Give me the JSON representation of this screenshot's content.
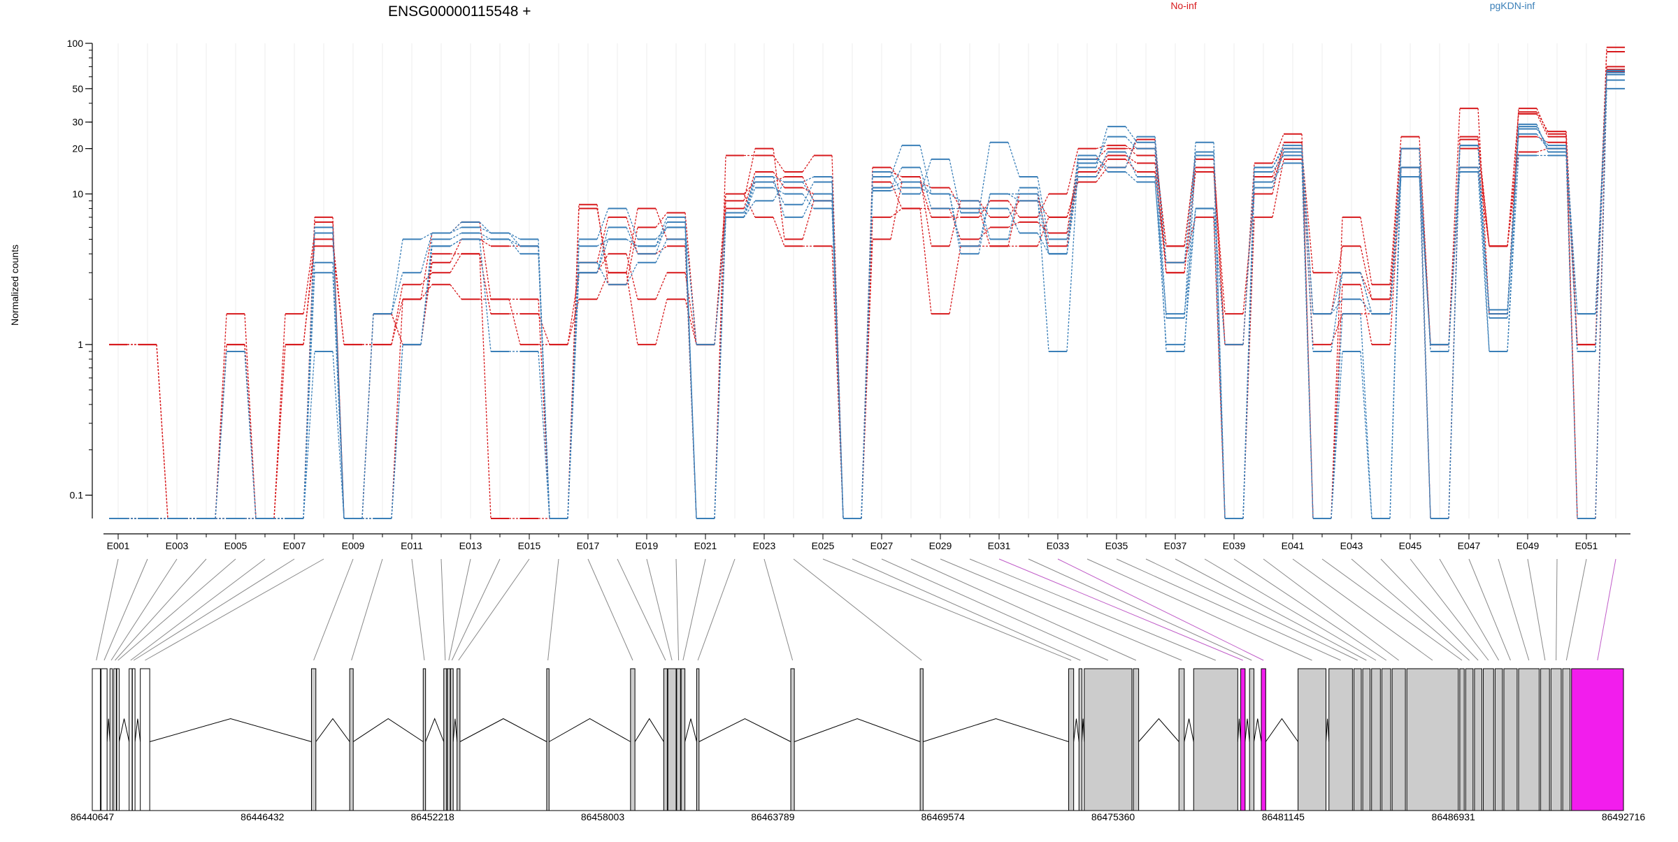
{
  "chart_data": {
    "type": "line",
    "title": "ENSG00000115548 +",
    "ylabel": "Normalized counts",
    "yscale": "log",
    "ylim": [
      0.07,
      100
    ],
    "y_ticks": [
      {
        "v": 0.1,
        "label": "0.1"
      },
      {
        "v": 1,
        "label": "1"
      },
      {
        "v": 10,
        "label": "10"
      },
      {
        "v": 20,
        "label": "20"
      },
      {
        "v": 30,
        "label": "30"
      },
      {
        "v": 50,
        "label": "50"
      },
      {
        "v": 100,
        "label": "100"
      }
    ],
    "legend_placement": "top",
    "exon_tick_labels": [
      "E001",
      "E003",
      "E005",
      "E007",
      "E009",
      "E011",
      "E013",
      "E015",
      "E017",
      "E019",
      "E021",
      "E023",
      "E025",
      "E027",
      "E029",
      "E031",
      "E033",
      "E035",
      "E037",
      "E039",
      "E041",
      "E043",
      "E045",
      "E047",
      "E049",
      "E051"
    ],
    "exons": [
      "E001",
      "E002",
      "E003",
      "E004",
      "E005",
      "E006",
      "E007",
      "E008",
      "E009",
      "E010",
      "E011",
      "E012",
      "E013",
      "E014",
      "E015",
      "E016",
      "E017",
      "E018",
      "E019",
      "E020",
      "E021",
      "E022",
      "E023",
      "E024",
      "E025",
      "E026",
      "E027",
      "E028",
      "E029",
      "E030",
      "E031",
      "E032",
      "E033",
      "E034",
      "E035",
      "E036",
      "E037",
      "E038",
      "E039",
      "E040",
      "E041",
      "E042",
      "E043",
      "E044",
      "E045",
      "E046",
      "E047",
      "E048",
      "E049",
      "E050",
      "E051",
      "E052"
    ],
    "genomic_axis": {
      "min": 86440647,
      "max": 86492716,
      "tick_labels": [
        "86440647",
        "86446432",
        "86452218",
        "86458003",
        "86463789",
        "86469574",
        "86475360",
        "86481145",
        "86486931",
        "86492716"
      ]
    },
    "exon_coords": [
      [
        86440647,
        86440920
      ],
      [
        86440950,
        86441150
      ],
      [
        86441250,
        86441330
      ],
      [
        86441380,
        86441460
      ],
      [
        86441480,
        86441560
      ],
      [
        86441900,
        86442000
      ],
      [
        86442010,
        86442100
      ],
      [
        86442280,
        86442600
      ],
      [
        86448100,
        86448250
      ],
      [
        86449400,
        86449520
      ],
      [
        86451900,
        86451980
      ],
      [
        86452600,
        86452700
      ],
      [
        86452720,
        86452820
      ],
      [
        86452830,
        86452920
      ],
      [
        86453050,
        86453150
      ],
      [
        86456100,
        86456180
      ],
      [
        86458950,
        86459100
      ],
      [
        86460080,
        86460200
      ],
      [
        86460220,
        86460500
      ],
      [
        86460520,
        86460650
      ],
      [
        86460670,
        86460800
      ],
      [
        86461200,
        86461280
      ],
      [
        86464400,
        86464520
      ],
      [
        86468800,
        86468900
      ],
      [
        86473850,
        86474020
      ],
      [
        86474200,
        86474300
      ],
      [
        86474380,
        86476000
      ],
      [
        86476050,
        86476230
      ],
      [
        86477600,
        86477780
      ],
      [
        86478100,
        86479600
      ],
      [
        86479700,
        86479850
      ],
      [
        86480000,
        86480150
      ],
      [
        86480400,
        86480550
      ],
      [
        86481650,
        86482600
      ],
      [
        86482700,
        86483500
      ],
      [
        86483550,
        86483800
      ],
      [
        86483850,
        86484100
      ],
      [
        86484150,
        86484450
      ],
      [
        86484500,
        86484800
      ],
      [
        86484850,
        86485300
      ],
      [
        86485350,
        86487100
      ],
      [
        86487150,
        86487300
      ],
      [
        86487350,
        86487600
      ],
      [
        86487650,
        86487900
      ],
      [
        86487950,
        86488300
      ],
      [
        86488350,
        86488600
      ],
      [
        86488650,
        86489100
      ],
      [
        86489150,
        86489850
      ],
      [
        86489900,
        86490200
      ],
      [
        86490250,
        86490600
      ],
      [
        86490650,
        86490900
      ],
      [
        86490950,
        86492716
      ]
    ],
    "highlighted_exons": [
      30,
      32,
      51
    ],
    "series": [
      {
        "name": "No-inf",
        "color": "#d7191c",
        "values": [
          1,
          1,
          0.07,
          0.07,
          1,
          0.07,
          1,
          4.5,
          1,
          1,
          2,
          2.5,
          2,
          2,
          1,
          1,
          2,
          3,
          1,
          2,
          1,
          10,
          7,
          4.5,
          4.5,
          0.07,
          7,
          8,
          1.6,
          4.5,
          4.5,
          4.5,
          7,
          13,
          17,
          14,
          3.5,
          7,
          0.07,
          7,
          17,
          1,
          1.6,
          1.6,
          15,
          1,
          15,
          4.5,
          19,
          20,
          1,
          70
        ]
      },
      {
        "name": "No-inf",
        "color": "#d7191c",
        "values": [
          1,
          1,
          0.07,
          0.07,
          1,
          0.07,
          1,
          5,
          1,
          1,
          2.5,
          3,
          4,
          1.6,
          1.6,
          1,
          3,
          4,
          2,
          3,
          1,
          8,
          14,
          11,
          10,
          0.07,
          14,
          13,
          4.5,
          9,
          7,
          9,
          7,
          12,
          15,
          23,
          3,
          14,
          1,
          13,
          20,
          3,
          3,
          2,
          20,
          1,
          20,
          4.5,
          24,
          22,
          1,
          88
        ]
      },
      {
        "name": "No-inf",
        "color": "#d7191c",
        "values": [
          0.07,
          0.07,
          0.07,
          0.07,
          1.6,
          0.07,
          1.6,
          5.5,
          0.07,
          1.6,
          1,
          4,
          4,
          0.07,
          0.07,
          0.07,
          3.5,
          7,
          4,
          4.5,
          0.07,
          18,
          18,
          14,
          18,
          0.07,
          15,
          12,
          7,
          7,
          9,
          7,
          10,
          20,
          21,
          18,
          4.5,
          18,
          1,
          16,
          25,
          0.07,
          2.5,
          1,
          15,
          0.07,
          24,
          4.5,
          35,
          26,
          1,
          94
        ]
      },
      {
        "name": "No-inf",
        "color": "#d7191c",
        "values": [
          0.07,
          0.07,
          0.07,
          0.07,
          0.07,
          0.07,
          0.07,
          7,
          0.07,
          1.6,
          1,
          3.5,
          5,
          4.5,
          4.5,
          0.07,
          8,
          3,
          8,
          5,
          0.07,
          9,
          20,
          5,
          9,
          0.07,
          5,
          12,
          11,
          8,
          4.5,
          10,
          4.5,
          14,
          18,
          16,
          3,
          15,
          1.6,
          10,
          22,
          0.07,
          7,
          2.5,
          24,
          1,
          37,
          1.6,
          37,
          25,
          0.07,
          65
        ]
      },
      {
        "name": "No-inf",
        "color": "#d7191c",
        "values": [
          0.07,
          0.07,
          0.07,
          0.07,
          0.07,
          0.07,
          0.07,
          6.5,
          0.07,
          0.07,
          2,
          5.5,
          6.5,
          2,
          2,
          0.07,
          8.5,
          2.5,
          6,
          7.5,
          1,
          10,
          12,
          13,
          9,
          0.07,
          12,
          8,
          8,
          5,
          6,
          6.5,
          5.5,
          17,
          20,
          20,
          4.5,
          17,
          0.07,
          12,
          19,
          1.6,
          4.5,
          2,
          20,
          0.07,
          23,
          4.5,
          34,
          24,
          0.07,
          67
        ]
      },
      {
        "name": "pgKDN-inf",
        "color": "#3a7fb8",
        "values": [
          0.07,
          0.07,
          0.07,
          0.07,
          0.07,
          0.07,
          0.07,
          0.9,
          0.07,
          1.6,
          3,
          5.5,
          6.5,
          5.5,
          5,
          0.07,
          3,
          5,
          4.5,
          6,
          0.07,
          7,
          9,
          12,
          13,
          0.07,
          14,
          10,
          17,
          7.5,
          22,
          13,
          5,
          15,
          28,
          22,
          1.5,
          22,
          0.07,
          15,
          20,
          1.6,
          2,
          1.6,
          15,
          1,
          15,
          1.7,
          25,
          20,
          1.6,
          62
        ]
      },
      {
        "name": "pgKDN-inf",
        "color": "#3a7fb8",
        "values": [
          0.07,
          0.07,
          0.07,
          0.07,
          0.9,
          0.07,
          0.07,
          5.5,
          0.07,
          1.6,
          5,
          5.5,
          6,
          5.5,
          4.5,
          0.07,
          5,
          8,
          5,
          6,
          1,
          7,
          11,
          10,
          8,
          0.07,
          11,
          15,
          8,
          8,
          8,
          5.5,
          4,
          18,
          14,
          12,
          1.6,
          8,
          1,
          14,
          18,
          0.9,
          3,
          1.6,
          13,
          1,
          14,
          0.9,
          18,
          18,
          0.07,
          50
        ]
      },
      {
        "name": "pgKDN-inf",
        "color": "#3a7fb8",
        "values": [
          0.07,
          0.07,
          0.07,
          0.07,
          0.9,
          0.07,
          0.07,
          3.5,
          0.07,
          0.07,
          1,
          4.5,
          5,
          0.9,
          0.9,
          0.07,
          3.5,
          2.5,
          3.5,
          5,
          0.07,
          7.5,
          13,
          7,
          10,
          0.07,
          13,
          21,
          10,
          4.5,
          10,
          10,
          0.9,
          16,
          24,
          20,
          0.9,
          18,
          0.07,
          12,
          16,
          0.07,
          0.9,
          0.07,
          20,
          0.07,
          21,
          1.6,
          29,
          19,
          0.9,
          57
        ]
      },
      {
        "name": "pgKDN-inf",
        "color": "#3a7fb8",
        "values": [
          0.07,
          0.07,
          0.07,
          0.07,
          0.07,
          0.07,
          0.07,
          6,
          0.07,
          0.07,
          1,
          4.5,
          5,
          5,
          4.5,
          0.07,
          4.5,
          5,
          4.5,
          7,
          0.07,
          7,
          12,
          8.5,
          12,
          0.07,
          11,
          12,
          10,
          4,
          10,
          9,
          4,
          13,
          19,
          13,
          1,
          8,
          0.07,
          11,
          19,
          0.07,
          1.6,
          0.07,
          15,
          0.07,
          21,
          0.9,
          28,
          20,
          0.9,
          64
        ]
      },
      {
        "name": "pgKDN-inf",
        "color": "#3a7fb8",
        "values": [
          0.07,
          0.07,
          0.07,
          0.07,
          0.07,
          0.07,
          0.07,
          3,
          0.07,
          0.07,
          1,
          5,
          5.5,
          5,
          4,
          0.07,
          3,
          6,
          4,
          6.5,
          0.07,
          7,
          13,
          12,
          9,
          0.07,
          10.5,
          11,
          10,
          9,
          5,
          11,
          4,
          17,
          15,
          24,
          3.5,
          19,
          0.07,
          15,
          21,
          1.6,
          3,
          1.6,
          20,
          0.9,
          21,
          1.5,
          27,
          21,
          1.6,
          66
        ]
      }
    ]
  }
}
